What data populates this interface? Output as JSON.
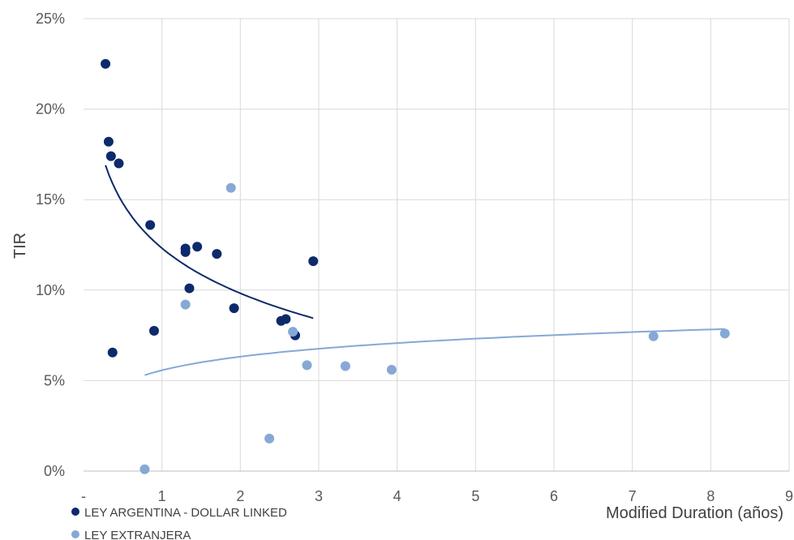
{
  "chart_data": {
    "type": "scatter",
    "xlabel": "Modified Duration (años)",
    "ylabel": "TIR",
    "xlim": [
      0,
      9
    ],
    "ylim": [
      0,
      25
    ],
    "x_ticks": [
      {
        "value": 0,
        "label": "-"
      },
      {
        "value": 1,
        "label": "1"
      },
      {
        "value": 2,
        "label": "2"
      },
      {
        "value": 3,
        "label": "3"
      },
      {
        "value": 4,
        "label": "4"
      },
      {
        "value": 5,
        "label": "5"
      },
      {
        "value": 6,
        "label": "6"
      },
      {
        "value": 7,
        "label": "7"
      },
      {
        "value": 8,
        "label": "8"
      },
      {
        "value": 9,
        "label": "9"
      }
    ],
    "y_ticks": [
      {
        "value": 0,
        "label": "0%"
      },
      {
        "value": 5,
        "label": "5%"
      },
      {
        "value": 10,
        "label": "10%"
      },
      {
        "value": 15,
        "label": "15%"
      },
      {
        "value": 20,
        "label": "20%"
      },
      {
        "value": 25,
        "label": "25%"
      }
    ],
    "grid": true,
    "legend_position": "bottom-left",
    "series": [
      {
        "name": "LEY ARGENTINA - DOLLAR LINKED",
        "color": "#0d2a6b",
        "points": [
          [
            0.28,
            22.5
          ],
          [
            0.32,
            18.2
          ],
          [
            0.35,
            17.4
          ],
          [
            0.45,
            17.0
          ],
          [
            0.85,
            13.6
          ],
          [
            1.3,
            12.3
          ],
          [
            1.3,
            12.1
          ],
          [
            1.45,
            12.4
          ],
          [
            1.7,
            12.0
          ],
          [
            1.35,
            10.1
          ],
          [
            1.92,
            9.0
          ],
          [
            0.9,
            7.75
          ],
          [
            0.37,
            6.55
          ],
          [
            2.52,
            8.3
          ],
          [
            2.58,
            8.4
          ],
          [
            2.7,
            7.5
          ],
          [
            2.93,
            11.6
          ]
        ],
        "trendline": {
          "type": "log",
          "x_from": 0.28,
          "x_to": 2.93,
          "y_from": 16.9,
          "y_to": 8.45
        }
      },
      {
        "name": "LEY EXTRANJERA",
        "color": "#86a8d6",
        "points": [
          [
            0.78,
            0.1
          ],
          [
            1.3,
            9.2
          ],
          [
            1.88,
            15.65
          ],
          [
            2.37,
            1.8
          ],
          [
            2.67,
            7.7
          ],
          [
            2.85,
            5.85
          ],
          [
            3.34,
            5.8
          ],
          [
            3.93,
            5.6
          ],
          [
            7.27,
            7.45
          ],
          [
            8.18,
            7.6
          ]
        ],
        "trendline": {
          "type": "log",
          "x_from": 0.78,
          "x_to": 8.18,
          "y_from": 5.3,
          "y_to": 7.85
        }
      }
    ]
  }
}
